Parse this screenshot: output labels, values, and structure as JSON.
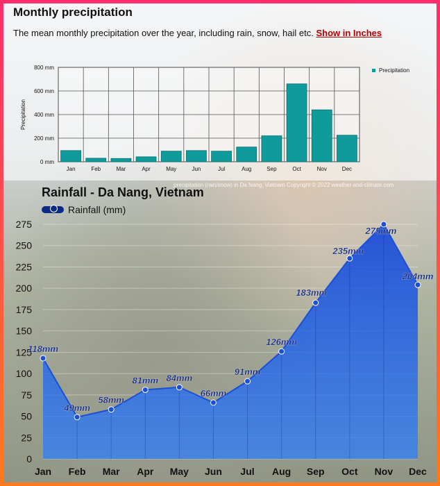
{
  "top_panel": {
    "title": "Monthly precipitation",
    "subtitle": "The mean monthly precipitation over the year, including rain, snow, hail etc.",
    "link": "Show in Inches",
    "watermark": "precipitation (rain/snow) in Da Nang, Vietnam    Copyright © 2022  weather-and-climate.com"
  },
  "bottom_panel": {
    "title": "Rainfall - Da Nang, Vietnam",
    "legend": "Rainfall (mm)"
  },
  "chart_data": [
    {
      "type": "bar",
      "categories": [
        "Jan",
        "Feb",
        "Mar",
        "Apr",
        "May",
        "Jun",
        "Jul",
        "Aug",
        "Sep",
        "Oct",
        "Nov",
        "Dec"
      ],
      "values": [
        95,
        30,
        28,
        42,
        90,
        95,
        90,
        125,
        220,
        660,
        440,
        225
      ],
      "title": "Monthly precipitation",
      "ylabel": "Precipitation",
      "ylim": [
        0,
        800
      ],
      "y_ticks": [
        "0 mm",
        "200 mm",
        "400 mm",
        "600 mm",
        "800 mm"
      ],
      "legend": "Precipitation",
      "color": "#0f9b9b"
    },
    {
      "type": "area",
      "categories": [
        "Jan",
        "Feb",
        "Mar",
        "Apr",
        "May",
        "Jun",
        "Jul",
        "Aug",
        "Sep",
        "Oct",
        "Nov",
        "Dec"
      ],
      "values": [
        118,
        49,
        58,
        81,
        84,
        66,
        91,
        126,
        183,
        235,
        275,
        204
      ],
      "data_labels": [
        "118mm",
        "49mm",
        "58mm",
        "81mm",
        "84mm",
        "66mm",
        "91mm",
        "126mm",
        "183mm",
        "235mm",
        "275mm",
        "204mm"
      ],
      "title": "Rainfall - Da Nang, Vietnam",
      "series_name": "Rainfall (mm)",
      "ylim": [
        0,
        275
      ],
      "y_ticks": [
        "0",
        "25",
        "50",
        "75",
        "100",
        "125",
        "150",
        "175",
        "200",
        "225",
        "250",
        "275"
      ],
      "color": "#1565e8"
    }
  ]
}
